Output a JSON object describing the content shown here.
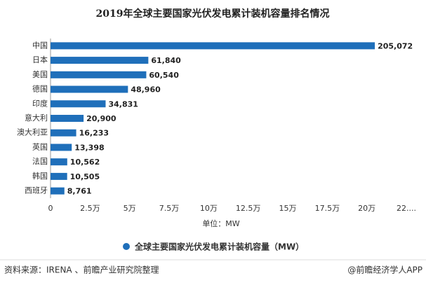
{
  "chart_data": {
    "type": "hbar",
    "title": "2019年全球主要国家光伏发电累计装机容量排名情况",
    "categories": [
      "中国",
      "日本",
      "美国",
      "德国",
      "印度",
      "意大利",
      "澳大利亚",
      "英国",
      "法国",
      "韩国",
      "西班牙"
    ],
    "series": [
      {
        "name": "全球主要国家光伏发电累计装机容量（MW）",
        "color": "#1f6fba",
        "values": [
          205072,
          61840,
          60540,
          48960,
          34831,
          20900,
          16233,
          13398,
          10562,
          10505,
          8761
        ],
        "value_labels": [
          "205,072",
          "61,840",
          "60,540",
          "48,960",
          "34,831",
          "20,900",
          "16,233",
          "13,398",
          "10,562",
          "10,505",
          "8,761"
        ]
      }
    ],
    "xlim": [
      0,
      225000
    ],
    "xticks": [
      0,
      {
        "value": 25000,
        "label": "2.5万"
      },
      {
        "value": 50000,
        "label": "5万"
      },
      {
        "value": 75000,
        "label": "7.5万"
      },
      {
        "value": 100000,
        "label": "10万"
      },
      {
        "value": 125000,
        "label": "12.5万"
      },
      {
        "value": 150000,
        "label": "15万"
      },
      {
        "value": 175000,
        "label": "17.5万"
      },
      {
        "value": 200000,
        "label": "20万"
      },
      {
        "value": 225000,
        "label": "22...."
      }
    ],
    "xlabel": "单位：MW",
    "grid": false,
    "legend": "bottom",
    "source": "资料来源：IRENA 、前瞻产业研究院整理",
    "credit": "@前瞻经济学人APP"
  }
}
